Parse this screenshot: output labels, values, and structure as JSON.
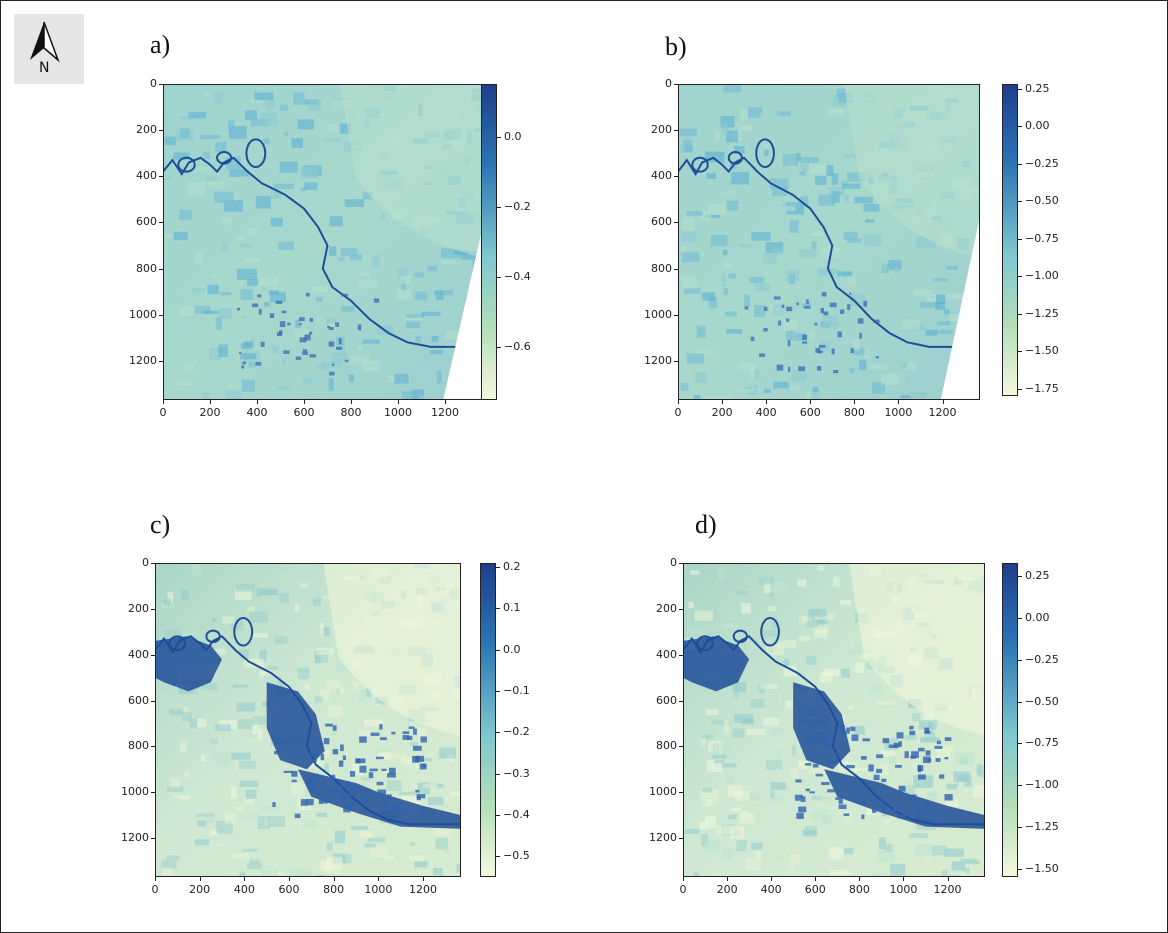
{
  "north_arrow": {
    "label": "N"
  },
  "colors": {
    "water": "#1f4e99",
    "cmap_low": "#f3f8de",
    "cmap_mid": "#7fc8cf",
    "cmap_high": "#1f3f8c"
  },
  "panels": [
    {
      "id": "a",
      "label": "a)",
      "x_ticks": [
        "0",
        "200",
        "400",
        "600",
        "800",
        "1000",
        "1200"
      ],
      "y_ticks": [
        "0",
        "200",
        "400",
        "600",
        "800",
        "1000",
        "1200"
      ],
      "colorbar": {
        "min": -0.75,
        "max": 0.15,
        "ticks": [
          "0.0",
          "−0.2",
          "−0.4",
          "−0.6"
        ],
        "tick_values": [
          0.0,
          -0.2,
          -0.4,
          -0.6
        ]
      },
      "flood_extent": false
    },
    {
      "id": "b",
      "label": "b)",
      "x_ticks": [
        "0",
        "200",
        "400",
        "600",
        "800",
        "1000",
        "1200"
      ],
      "y_ticks": [
        "0",
        "200",
        "400",
        "600",
        "800",
        "1000",
        "1200"
      ],
      "colorbar": {
        "min": -1.8,
        "max": 0.28,
        "ticks": [
          "0.25",
          "0.00",
          "−0.25",
          "−0.50",
          "−0.75",
          "−1.00",
          "−1.25",
          "−1.50",
          "−1.75"
        ],
        "tick_values": [
          0.25,
          0.0,
          -0.25,
          -0.5,
          -0.75,
          -1.0,
          -1.25,
          -1.5,
          -1.75
        ]
      },
      "flood_extent": false
    },
    {
      "id": "c",
      "label": "c)",
      "x_ticks": [
        "0",
        "200",
        "400",
        "600",
        "800",
        "1000",
        "1200"
      ],
      "y_ticks": [
        "0",
        "200",
        "400",
        "600",
        "800",
        "1000",
        "1200"
      ],
      "colorbar": {
        "min": -0.55,
        "max": 0.21,
        "ticks": [
          "0.2",
          "0.1",
          "0.0",
          "−0.1",
          "−0.2",
          "−0.3",
          "−0.4",
          "−0.5"
        ],
        "tick_values": [
          0.2,
          0.1,
          0.0,
          -0.1,
          -0.2,
          -0.3,
          -0.4,
          -0.5
        ]
      },
      "flood_extent": true
    },
    {
      "id": "d",
      "label": "d)",
      "x_ticks": [
        "0",
        "200",
        "400",
        "600",
        "800",
        "1000",
        "1200"
      ],
      "y_ticks": [
        "0",
        "200",
        "400",
        "600",
        "800",
        "1000",
        "1200"
      ],
      "colorbar": {
        "min": -1.55,
        "max": 0.33,
        "ticks": [
          "0.25",
          "0.00",
          "−0.25",
          "−0.50",
          "−0.75",
          "−1.00",
          "−1.25",
          "−1.50"
        ],
        "tick_values": [
          0.25,
          0.0,
          -0.25,
          -0.5,
          -0.75,
          -1.0,
          -1.25,
          -1.5
        ]
      },
      "flood_extent": true
    }
  ]
}
